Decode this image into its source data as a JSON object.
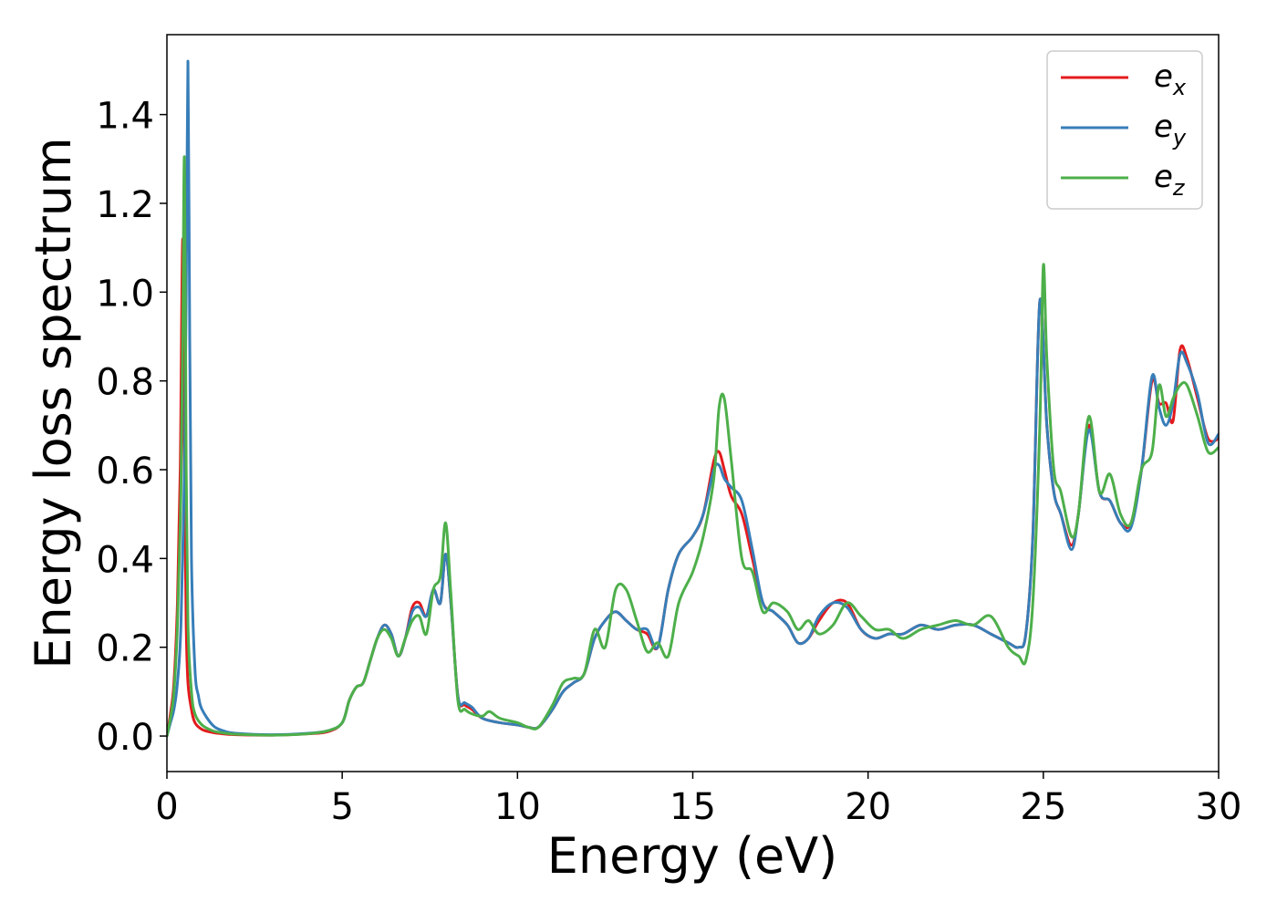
{
  "chart_data": {
    "type": "line",
    "title": "",
    "xlabel": "Energy (eV)",
    "ylabel": "Energy loss spectrum",
    "xlim": [
      0,
      30
    ],
    "ylim": [
      -0.08,
      1.58
    ],
    "xticks": [
      "0",
      "5",
      "10",
      "15",
      "20",
      "25",
      "30"
    ],
    "yticks": [
      "0.0",
      "0.2",
      "0.4",
      "0.6",
      "0.8",
      "1.0",
      "1.2",
      "1.4"
    ],
    "grid": false,
    "legend_position": "top-right",
    "series": [
      {
        "name": "e_x",
        "label_main": "e",
        "label_sub": "x",
        "color": "#e41a1c",
        "x": [
          0.0,
          0.1,
          0.2,
          0.3,
          0.38,
          0.45,
          0.5,
          0.55,
          0.6,
          0.7,
          0.8,
          1.0,
          1.3,
          1.6,
          2.0,
          3.0,
          4.0,
          4.6,
          5.0,
          5.2,
          5.4,
          5.6,
          5.8,
          6.0,
          6.2,
          6.4,
          6.6,
          6.8,
          7.0,
          7.2,
          7.4,
          7.6,
          7.8,
          7.95,
          8.1,
          8.3,
          8.5,
          8.7,
          9.0,
          9.5,
          10.0,
          10.3,
          10.6,
          11.0,
          11.3,
          11.6,
          11.9,
          12.2,
          12.5,
          12.8,
          13.1,
          13.4,
          13.7,
          14.0,
          14.3,
          14.6,
          15.0,
          15.3,
          15.6,
          15.75,
          15.9,
          16.1,
          16.4,
          16.7,
          17.0,
          17.3,
          17.7,
          18.0,
          18.3,
          18.6,
          19.0,
          19.4,
          19.8,
          20.2,
          20.6,
          21.0,
          21.5,
          22.0,
          22.5,
          23.0,
          23.5,
          24.0,
          24.3,
          24.5,
          24.7,
          24.9,
          25.1,
          25.3,
          25.5,
          25.8,
          26.0,
          26.3,
          26.6,
          26.9,
          27.2,
          27.5,
          27.8,
          28.1,
          28.3,
          28.5,
          28.7,
          28.9,
          29.1,
          29.4,
          29.7,
          30.0
        ],
        "y": [
          0.0,
          0.05,
          0.12,
          0.3,
          0.6,
          1.12,
          0.6,
          0.25,
          0.12,
          0.06,
          0.03,
          0.015,
          0.008,
          0.005,
          0.003,
          0.002,
          0.005,
          0.01,
          0.03,
          0.08,
          0.11,
          0.12,
          0.17,
          0.22,
          0.25,
          0.23,
          0.18,
          0.22,
          0.29,
          0.3,
          0.27,
          0.33,
          0.3,
          0.41,
          0.3,
          0.09,
          0.07,
          0.06,
          0.04,
          0.03,
          0.025,
          0.02,
          0.02,
          0.06,
          0.1,
          0.12,
          0.14,
          0.22,
          0.26,
          0.28,
          0.26,
          0.24,
          0.23,
          0.2,
          0.33,
          0.41,
          0.45,
          0.5,
          0.62,
          0.64,
          0.6,
          0.54,
          0.5,
          0.4,
          0.3,
          0.28,
          0.25,
          0.21,
          0.22,
          0.26,
          0.3,
          0.3,
          0.24,
          0.22,
          0.23,
          0.23,
          0.25,
          0.24,
          0.25,
          0.25,
          0.23,
          0.21,
          0.2,
          0.23,
          0.45,
          0.98,
          0.7,
          0.55,
          0.5,
          0.43,
          0.5,
          0.7,
          0.55,
          0.53,
          0.48,
          0.48,
          0.6,
          0.8,
          0.75,
          0.75,
          0.71,
          0.87,
          0.85,
          0.76,
          0.67,
          0.67
        ]
      },
      {
        "name": "e_y",
        "label_main": "e",
        "label_sub": "y",
        "color": "#377eb8",
        "x": [
          0.0,
          0.1,
          0.2,
          0.3,
          0.4,
          0.5,
          0.55,
          0.6,
          0.65,
          0.7,
          0.8,
          0.9,
          1.0,
          1.3,
          1.6,
          2.0,
          3.0,
          4.0,
          4.6,
          5.0,
          5.2,
          5.4,
          5.6,
          5.8,
          6.0,
          6.2,
          6.4,
          6.6,
          6.8,
          7.0,
          7.2,
          7.4,
          7.6,
          7.8,
          7.95,
          8.1,
          8.3,
          8.5,
          8.7,
          9.0,
          9.5,
          10.0,
          10.3,
          10.6,
          11.0,
          11.3,
          11.6,
          11.9,
          12.2,
          12.5,
          12.8,
          13.1,
          13.4,
          13.7,
          14.0,
          14.3,
          14.6,
          15.0,
          15.3,
          15.6,
          15.75,
          15.9,
          16.1,
          16.4,
          16.7,
          17.0,
          17.3,
          17.7,
          18.0,
          18.3,
          18.6,
          19.0,
          19.4,
          19.8,
          20.2,
          20.6,
          21.0,
          21.5,
          22.0,
          22.5,
          23.0,
          23.5,
          24.0,
          24.3,
          24.5,
          24.7,
          24.9,
          25.1,
          25.3,
          25.5,
          25.8,
          26.0,
          26.3,
          26.6,
          26.9,
          27.2,
          27.5,
          27.8,
          28.1,
          28.3,
          28.5,
          28.7,
          28.9,
          29.1,
          29.4,
          29.7,
          30.0
        ],
        "y": [
          0.0,
          0.03,
          0.06,
          0.12,
          0.25,
          0.6,
          1.0,
          1.52,
          0.9,
          0.4,
          0.15,
          0.09,
          0.06,
          0.025,
          0.012,
          0.006,
          0.003,
          0.006,
          0.012,
          0.03,
          0.08,
          0.11,
          0.12,
          0.17,
          0.22,
          0.25,
          0.23,
          0.18,
          0.22,
          0.28,
          0.29,
          0.27,
          0.33,
          0.3,
          0.41,
          0.3,
          0.09,
          0.075,
          0.065,
          0.04,
          0.03,
          0.025,
          0.02,
          0.02,
          0.06,
          0.1,
          0.12,
          0.14,
          0.22,
          0.26,
          0.28,
          0.26,
          0.24,
          0.24,
          0.2,
          0.33,
          0.41,
          0.45,
          0.5,
          0.6,
          0.61,
          0.58,
          0.56,
          0.53,
          0.42,
          0.3,
          0.28,
          0.25,
          0.21,
          0.22,
          0.27,
          0.3,
          0.29,
          0.24,
          0.22,
          0.23,
          0.23,
          0.25,
          0.24,
          0.25,
          0.25,
          0.23,
          0.21,
          0.2,
          0.23,
          0.45,
          0.98,
          0.7,
          0.55,
          0.5,
          0.42,
          0.5,
          0.69,
          0.55,
          0.53,
          0.48,
          0.47,
          0.6,
          0.81,
          0.74,
          0.7,
          0.75,
          0.86,
          0.84,
          0.77,
          0.66,
          0.68
        ]
      },
      {
        "name": "e_z",
        "label_main": "e",
        "label_sub": "z",
        "color": "#4daf4a",
        "x": [
          0.0,
          0.1,
          0.2,
          0.3,
          0.4,
          0.45,
          0.5,
          0.55,
          0.6,
          0.7,
          0.8,
          1.0,
          1.3,
          1.6,
          2.0,
          3.0,
          4.0,
          4.6,
          5.0,
          5.2,
          5.4,
          5.6,
          5.8,
          6.0,
          6.2,
          6.4,
          6.6,
          6.8,
          7.0,
          7.2,
          7.4,
          7.6,
          7.8,
          7.95,
          8.1,
          8.3,
          8.5,
          8.7,
          9.0,
          9.2,
          9.5,
          10.0,
          10.3,
          10.6,
          11.0,
          11.3,
          11.6,
          11.9,
          12.2,
          12.5,
          12.8,
          13.1,
          13.4,
          13.7,
          14.0,
          14.3,
          14.6,
          15.0,
          15.3,
          15.6,
          15.75,
          15.9,
          16.1,
          16.4,
          16.7,
          17.0,
          17.3,
          17.7,
          18.0,
          18.3,
          18.6,
          19.0,
          19.4,
          19.8,
          20.2,
          20.6,
          21.0,
          21.5,
          22.0,
          22.5,
          23.0,
          23.5,
          24.0,
          24.3,
          24.5,
          24.7,
          24.9,
          25.0,
          25.1,
          25.3,
          25.5,
          25.8,
          26.0,
          26.3,
          26.6,
          26.9,
          27.2,
          27.5,
          27.8,
          28.1,
          28.3,
          28.5,
          28.7,
          28.9,
          29.1,
          29.4,
          29.7,
          30.0
        ],
        "y": [
          0.0,
          0.04,
          0.1,
          0.25,
          0.55,
          0.9,
          1.3,
          0.6,
          0.25,
          0.1,
          0.05,
          0.025,
          0.012,
          0.007,
          0.004,
          0.002,
          0.005,
          0.012,
          0.03,
          0.08,
          0.11,
          0.12,
          0.17,
          0.22,
          0.24,
          0.22,
          0.18,
          0.22,
          0.26,
          0.27,
          0.23,
          0.33,
          0.36,
          0.48,
          0.32,
          0.08,
          0.06,
          0.05,
          0.045,
          0.055,
          0.04,
          0.03,
          0.02,
          0.02,
          0.07,
          0.12,
          0.13,
          0.14,
          0.24,
          0.2,
          0.33,
          0.33,
          0.26,
          0.19,
          0.21,
          0.18,
          0.3,
          0.37,
          0.45,
          0.58,
          0.74,
          0.76,
          0.62,
          0.4,
          0.37,
          0.28,
          0.3,
          0.28,
          0.24,
          0.26,
          0.23,
          0.25,
          0.3,
          0.27,
          0.24,
          0.24,
          0.22,
          0.24,
          0.25,
          0.26,
          0.25,
          0.27,
          0.2,
          0.18,
          0.17,
          0.3,
          0.7,
          1.06,
          0.85,
          0.6,
          0.55,
          0.45,
          0.5,
          0.72,
          0.55,
          0.59,
          0.5,
          0.48,
          0.6,
          0.64,
          0.79,
          0.72,
          0.76,
          0.79,
          0.79,
          0.72,
          0.64,
          0.65
        ]
      }
    ]
  }
}
